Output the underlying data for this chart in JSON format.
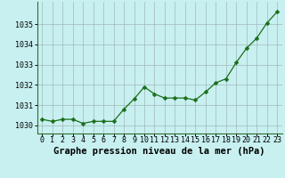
{
  "title": "Graphe pression niveau de la mer (hPa)",
  "x": [
    0,
    1,
    2,
    3,
    4,
    5,
    6,
    7,
    8,
    9,
    10,
    11,
    12,
    13,
    14,
    15,
    16,
    17,
    18,
    19,
    20,
    21,
    22,
    23
  ],
  "y": [
    1030.3,
    1030.2,
    1030.3,
    1030.3,
    1030.1,
    1030.2,
    1030.2,
    1030.2,
    1030.8,
    1031.3,
    1031.9,
    1031.55,
    1031.35,
    1031.35,
    1031.35,
    1031.25,
    1031.65,
    1032.1,
    1032.3,
    1033.1,
    1033.8,
    1034.3,
    1035.05,
    1035.6
  ],
  "line_color": "#1a6e1a",
  "marker": "D",
  "marker_size": 2.5,
  "bg_color": "#c8f0f0",
  "grid_color": "#a0b8b8",
  "ylim_min": 1029.6,
  "ylim_max": 1036.1,
  "yticks": [
    1030,
    1031,
    1032,
    1033,
    1034,
    1035
  ],
  "xticks": [
    0,
    1,
    2,
    3,
    4,
    5,
    6,
    7,
    8,
    9,
    10,
    11,
    12,
    13,
    14,
    15,
    16,
    17,
    18,
    19,
    20,
    21,
    22,
    23
  ],
  "title_fontsize": 7.5,
  "tick_fontsize": 6.0,
  "spine_color": "#2d6e2d"
}
